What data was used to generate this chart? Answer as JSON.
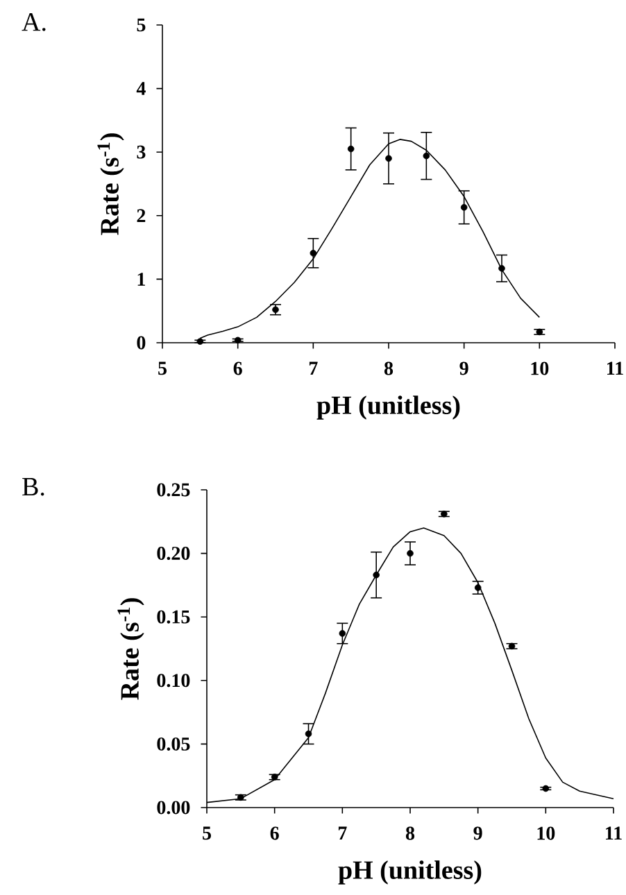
{
  "chart_data": [
    {
      "type": "scatter",
      "title": "A.",
      "xlabel": "pH (unitless)",
      "ylabel": "Rate (s$^{-1}$)",
      "xlim": [
        5,
        11
      ],
      "ylim": [
        0,
        5
      ],
      "xticks": [
        5,
        6,
        7,
        8,
        9,
        10,
        11
      ],
      "yticks": [
        0,
        1,
        2,
        3,
        4,
        5
      ],
      "series": [
        {
          "color": "#000000",
          "marker": "circle",
          "x": [
            5.5,
            6.0,
            6.5,
            7.0,
            7.5,
            8.0,
            8.5,
            9.0,
            9.5,
            10.0
          ],
          "values": [
            0.02,
            0.04,
            0.52,
            1.41,
            3.05,
            2.9,
            2.94,
            2.13,
            1.17,
            0.17
          ],
          "errors": [
            0.02,
            0.02,
            0.08,
            0.23,
            0.33,
            0.4,
            0.37,
            0.26,
            0.21,
            0.04
          ]
        },
        {
          "type": "line",
          "color": "#000000",
          "marker": "none",
          "x": [
            5.5,
            5.6,
            5.8,
            6.0,
            6.25,
            6.5,
            6.75,
            7.0,
            7.25,
            7.5,
            7.75,
            8.0,
            8.15,
            8.3,
            8.5,
            8.75,
            9.0,
            9.25,
            9.5,
            9.75,
            10.0
          ],
          "values": [
            0.07,
            0.12,
            0.18,
            0.25,
            0.4,
            0.65,
            0.95,
            1.32,
            1.8,
            2.3,
            2.8,
            3.13,
            3.2,
            3.17,
            3.03,
            2.72,
            2.3,
            1.75,
            1.15,
            0.7,
            0.4
          ]
        }
      ]
    },
    {
      "type": "scatter",
      "title": "B.",
      "xlabel": "pH (unitless)",
      "ylabel": "Rate (s$^{-1}$)",
      "xlim": [
        5,
        11
      ],
      "ylim": [
        0,
        0.25
      ],
      "xticks": [
        5,
        6,
        7,
        8,
        9,
        10,
        11
      ],
      "yticks": [
        {
          "value": 0,
          "label": "0.00"
        },
        {
          "value": 0.05,
          "label": "0.05"
        },
        {
          "value": 0.1,
          "label": "0.10"
        },
        {
          "value": 0.15,
          "label": "0.15"
        },
        {
          "value": 0.2,
          "label": "0.20"
        },
        {
          "value": 0.25,
          "label": "0.25"
        }
      ],
      "series": [
        {
          "color": "#000000",
          "marker": "circle",
          "x": [
            5.5,
            6.0,
            6.5,
            7.0,
            7.5,
            8.0,
            8.5,
            9.0,
            9.5,
            10.0
          ],
          "values": [
            0.008,
            0.024,
            0.058,
            0.137,
            0.183,
            0.2,
            0.231,
            0.173,
            0.127,
            0.015
          ],
          "errors": [
            0.002,
            0.002,
            0.008,
            0.008,
            0.018,
            0.009,
            0.002,
            0.005,
            0.002,
            0.001
          ]
        },
        {
          "type": "line",
          "color": "#000000",
          "marker": "none",
          "x": [
            5.0,
            5.5,
            6.0,
            6.5,
            6.75,
            7.0,
            7.25,
            7.5,
            7.75,
            8.0,
            8.2,
            8.5,
            8.75,
            9.0,
            9.25,
            9.5,
            9.75,
            10.0,
            10.25,
            10.5,
            11.0
          ],
          "values": [
            0.004,
            0.007,
            0.022,
            0.055,
            0.09,
            0.128,
            0.16,
            0.183,
            0.205,
            0.217,
            0.22,
            0.214,
            0.2,
            0.177,
            0.145,
            0.108,
            0.07,
            0.039,
            0.02,
            0.013,
            0.007
          ]
        }
      ]
    }
  ]
}
